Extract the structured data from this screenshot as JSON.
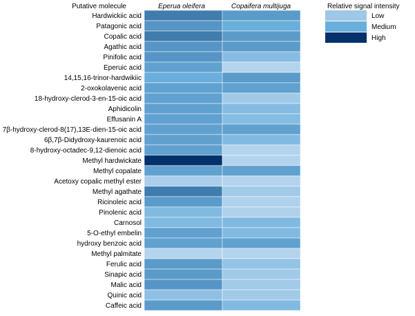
{
  "chart_data": {
    "type": "heatmap",
    "row_header": "Putative molecule",
    "columns": [
      "Eperua oleifera",
      "Copaifera multijuga"
    ],
    "levels": {
      "1": "Low",
      "2": "Medium",
      "3": "High"
    },
    "rows": [
      {
        "label": "Hardwickiic acid",
        "values": [
          2.4,
          2.15
        ]
      },
      {
        "label": "Patagonic acid",
        "values": [
          2.2,
          2.0
        ]
      },
      {
        "label": "Copalic acid",
        "values": [
          2.4,
          2.15
        ]
      },
      {
        "label": "Agathic acid",
        "values": [
          2.2,
          2.15
        ]
      },
      {
        "label": "Pinifolic acid",
        "values": [
          2.2,
          1.7
        ]
      },
      {
        "label": "Eperuic acid",
        "values": [
          2.1,
          1.2
        ]
      },
      {
        "label": "14,15,16-trinor-hardwikiic",
        "values": [
          2.0,
          2.15
        ]
      },
      {
        "label": "2-oxokolavenic acid",
        "values": [
          2.1,
          2.1
        ]
      },
      {
        "label": "18-hydroxy-clerod-3-en-15-oic acid",
        "values": [
          2.1,
          1.4
        ]
      },
      {
        "label": "Aphidicolin",
        "values": [
          2.1,
          1.7
        ]
      },
      {
        "label": "Effusanin A",
        "values": [
          2.1,
          1.7
        ]
      },
      {
        "label": "7β-hydroxy-clerod-8(17),13E-dien-15-oic acid",
        "values": [
          2.1,
          2.1
        ]
      },
      {
        "label": "6β,7β-Didydroxy-kaurenoic acid",
        "values": [
          2.1,
          1.75
        ]
      },
      {
        "label": "8-hydroxy-octadec-9,12-dienoic acid",
        "values": [
          2.1,
          1.2
        ]
      },
      {
        "label": "Methyl hardwickate",
        "values": [
          3.0,
          1.2
        ]
      },
      {
        "label": "Methyl copalate",
        "values": [
          2.1,
          2.1
        ]
      },
      {
        "label": "Acetoxy copalic methyl ester",
        "values": [
          1.3,
          1.2
        ]
      },
      {
        "label": "Methyl agathate",
        "values": [
          2.4,
          1.4
        ]
      },
      {
        "label": "Ricinoleic acid",
        "values": [
          2.15,
          1.25
        ]
      },
      {
        "label": "Pinolenic acid",
        "values": [
          1.75,
          1.25
        ]
      },
      {
        "label": "Carnosol",
        "values": [
          1.75,
          1.75
        ]
      },
      {
        "label": "5-O-ethyl embelin",
        "values": [
          2.1,
          1.75
        ]
      },
      {
        "label": "hydroxy benzoic acid",
        "values": [
          2.1,
          2.1
        ]
      },
      {
        "label": "Methyl palmitate",
        "values": [
          1.2,
          1.2
        ]
      },
      {
        "label": "Ferulic acid",
        "values": [
          2.15,
          1.55
        ]
      },
      {
        "label": "Sinapic acid",
        "values": [
          2.15,
          1.4
        ]
      },
      {
        "label": "Malic acid",
        "values": [
          2.2,
          1.4
        ]
      },
      {
        "label": "Quinic acid",
        "values": [
          1.6,
          1.4
        ]
      },
      {
        "label": "Caffeic acid",
        "values": [
          2.15,
          1.75
        ]
      }
    ],
    "legend": {
      "title": "Relative signal intensity",
      "position": "top-right",
      "items": [
        {
          "label": "Low",
          "color": "#9ec8e6"
        },
        {
          "label": "Medium",
          "color": "#6aaedb"
        },
        {
          "label": "High",
          "color": "#04306b"
        }
      ]
    },
    "colors": {
      "low": "#c6dcf2",
      "medium": "#6aaedb",
      "high": "#04306b"
    }
  }
}
